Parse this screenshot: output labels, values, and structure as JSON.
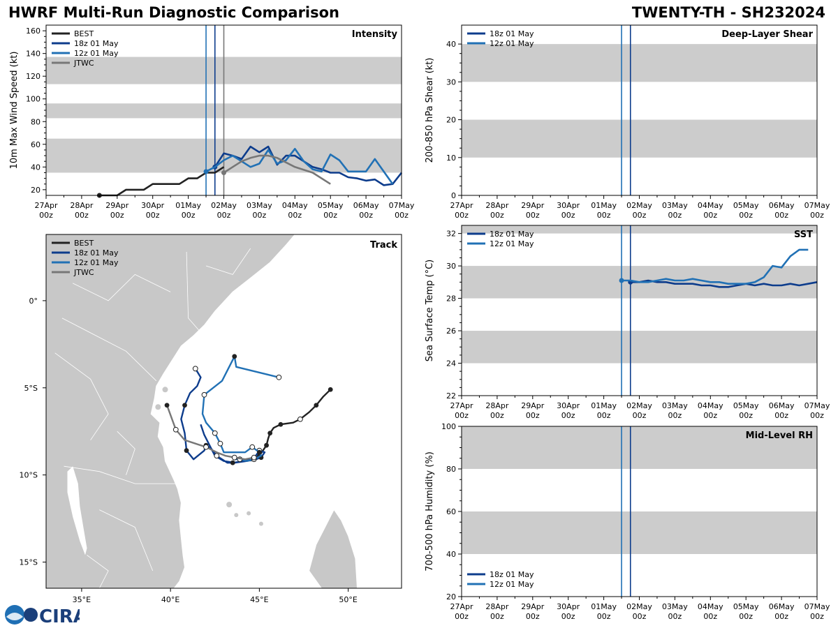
{
  "header": {
    "title": "HWRF Multi-Run Diagnostic Comparison",
    "storm": "TWENTY-TH - SH232024"
  },
  "logo": {
    "text": "CIRA"
  },
  "colors": {
    "best": "#222222",
    "run18": "#0d3c8c",
    "run12": "#2171b5",
    "jtwc": "#777777",
    "band": "#cccccc",
    "land": "#c8c8c8"
  },
  "time_axis": {
    "tick_labels": [
      [
        "27Apr",
        "00z"
      ],
      [
        "28Apr",
        "00z"
      ],
      [
        "29Apr",
        "00z"
      ],
      [
        "30Apr",
        "00z"
      ],
      [
        "01May",
        "00z"
      ],
      [
        "02May",
        "00z"
      ],
      [
        "03May",
        "00z"
      ],
      [
        "04May",
        "00z"
      ],
      [
        "05May",
        "00z"
      ],
      [
        "06May",
        "00z"
      ],
      [
        "07May",
        "00z"
      ]
    ],
    "range_days": [
      0,
      10
    ]
  },
  "chart_data": [
    {
      "type": "line",
      "name": "intensity",
      "title": "Intensity",
      "ylabel": "10m Max Wind Speed (kt)",
      "ylim": [
        15,
        165
      ],
      "yticks": [
        20,
        40,
        60,
        80,
        100,
        120,
        140,
        160
      ],
      "bands": [
        [
          35,
          65
        ],
        [
          83,
          96
        ],
        [
          113,
          137
        ]
      ],
      "vlines": [
        {
          "day": 4.5,
          "series": "run12"
        },
        {
          "day": 4.75,
          "series": "run18"
        },
        {
          "day": 5.0,
          "series": "jtwc"
        }
      ],
      "legend": [
        "BEST",
        "18z 01 May",
        "12z 01 May",
        "JTWC"
      ],
      "series": [
        {
          "name": "BEST",
          "key": "best",
          "x": [
            1.5,
            2.0,
            2.25,
            2.75,
            3.0,
            3.75,
            4.0,
            4.25,
            4.5,
            4.75,
            5.0
          ],
          "y": [
            15,
            15,
            20,
            20,
            25,
            25,
            30,
            30,
            35,
            35,
            40
          ]
        },
        {
          "name": "18z 01 May",
          "key": "run18",
          "x": [
            4.75,
            5.0,
            5.25,
            5.5,
            5.75,
            6.0,
            6.25,
            6.5,
            6.75,
            7.0,
            7.25,
            7.5,
            7.75,
            8.0,
            8.25,
            8.5,
            8.75,
            9.0,
            9.25,
            9.5,
            9.75,
            10.0
          ],
          "y": [
            40,
            52,
            50,
            47,
            58,
            53,
            58,
            42,
            50,
            50,
            45,
            40,
            38,
            35,
            35,
            31,
            30,
            28,
            29,
            24,
            25,
            35
          ]
        },
        {
          "name": "12z 01 May",
          "key": "run12",
          "x": [
            4.5,
            4.75,
            5.0,
            5.25,
            5.5,
            5.75,
            6.0,
            6.25,
            6.5,
            6.75,
            7.0,
            7.25,
            7.5,
            7.75,
            8.0,
            8.25,
            8.5,
            8.75,
            9.0,
            9.25,
            9.5,
            9.75
          ],
          "y": [
            36,
            40,
            46,
            50,
            45,
            40,
            43,
            55,
            43,
            46,
            56,
            45,
            38,
            36,
            51,
            46,
            36,
            36,
            36,
            47,
            36,
            25
          ]
        },
        {
          "name": "JTWC",
          "key": "jtwc",
          "x": [
            5.0,
            5.25,
            5.5,
            5.75,
            6.0,
            6.25,
            6.5,
            7.0,
            7.5,
            8.0
          ],
          "y": [
            35,
            40,
            45,
            48,
            50,
            50,
            48,
            40,
            35,
            25
          ]
        }
      ]
    },
    {
      "type": "line",
      "name": "shear",
      "title": "Deep-Layer Shear",
      "ylabel": "200-850 hPa Shear (kt)",
      "ylim": [
        0,
        45
      ],
      "yticks": [
        0,
        10,
        20,
        30,
        40
      ],
      "bands": [
        [
          10,
          20
        ],
        [
          30,
          40
        ]
      ],
      "vlines": [
        {
          "day": 4.5,
          "series": "run12"
        },
        {
          "day": 4.75,
          "series": "run18"
        }
      ],
      "legend": [
        "18z 01 May",
        "12z 01 May"
      ],
      "series": []
    },
    {
      "type": "line",
      "name": "sst",
      "title": "SST",
      "ylabel": "Sea Surface Temp (°C)",
      "ylim": [
        22,
        32.5
      ],
      "yticks": [
        22,
        24,
        26,
        28,
        30,
        32
      ],
      "bands": [
        [
          24,
          26
        ],
        [
          28,
          30
        ],
        [
          32,
          32.5
        ]
      ],
      "vlines": [
        {
          "day": 4.5,
          "series": "run12"
        },
        {
          "day": 4.75,
          "series": "run18"
        }
      ],
      "legend": [
        "18z 01 May",
        "12z 01 May"
      ],
      "series": [
        {
          "name": "18z 01 May",
          "key": "run18",
          "x": [
            4.75,
            5.0,
            5.25,
            5.5,
            5.75,
            6.0,
            6.25,
            6.5,
            6.75,
            7.0,
            7.25,
            7.5,
            7.75,
            8.0,
            8.25,
            8.5,
            8.75,
            9.0,
            9.25,
            9.5,
            9.75,
            10.0
          ],
          "y": [
            29.0,
            29.0,
            29.1,
            29.0,
            29.0,
            28.9,
            28.9,
            28.9,
            28.8,
            28.8,
            28.7,
            28.7,
            28.8,
            28.9,
            28.8,
            28.9,
            28.8,
            28.8,
            28.9,
            28.8,
            28.9,
            29.0
          ]
        },
        {
          "name": "12z 01 May",
          "key": "run12",
          "x": [
            4.5,
            4.75,
            5.0,
            5.25,
            5.5,
            5.75,
            6.0,
            6.25,
            6.5,
            6.75,
            7.0,
            7.25,
            7.5,
            7.75,
            8.0,
            8.25,
            8.5,
            8.75,
            9.0,
            9.25,
            9.5,
            9.75
          ],
          "y": [
            29.1,
            29.1,
            29.0,
            29.0,
            29.1,
            29.2,
            29.1,
            29.1,
            29.2,
            29.1,
            29.0,
            29.0,
            28.9,
            28.9,
            28.9,
            29.0,
            29.3,
            30.0,
            29.9,
            30.6,
            31.0,
            31.0
          ]
        }
      ]
    },
    {
      "type": "line",
      "name": "rh",
      "title": "Mid-Level RH",
      "ylabel": "700-500 hPa Humidity (%)",
      "ylim": [
        20,
        100
      ],
      "yticks": [
        20,
        40,
        60,
        80,
        100
      ],
      "bands": [
        [
          40,
          60
        ],
        [
          80,
          100
        ]
      ],
      "vlines": [
        {
          "day": 4.5,
          "series": "run12"
        },
        {
          "day": 4.75,
          "series": "run18"
        }
      ],
      "legend": [
        "18z 01 May",
        "12z 01 May"
      ],
      "series": []
    },
    {
      "type": "scatter",
      "name": "track",
      "title": "Track",
      "xlim": [
        33,
        53
      ],
      "ylim": [
        -16.5,
        3.8
      ],
      "xticks": [
        35,
        40,
        45,
        50
      ],
      "xtick_labels": [
        "35°E",
        "40°E",
        "45°E",
        "50°E"
      ],
      "yticks": [
        0,
        -5,
        -10,
        -15
      ],
      "ytick_labels": [
        "0°",
        "5°S",
        "10°S",
        "15°S"
      ],
      "legend": [
        "BEST",
        "18z 01 May",
        "12z 01 May",
        "JTWC"
      ],
      "series": [
        {
          "name": "BEST",
          "key": "best",
          "lon": [
            49.0,
            48.6,
            48.2,
            47.8,
            47.3,
            46.9,
            46.2,
            45.8,
            45.6,
            45.5,
            45.4,
            45.2,
            45.0,
            44.8,
            44.6,
            44.5
          ],
          "lat": [
            -5.1,
            -5.5,
            -6.0,
            -6.4,
            -6.8,
            -7.0,
            -7.1,
            -7.3,
            -7.6,
            -7.9,
            -8.3,
            -8.6,
            -8.9,
            -9.0,
            -9.1,
            -9.2
          ],
          "marks": [
            0,
            2,
            6,
            8,
            10,
            12
          ],
          "open_marks": [
            4
          ]
        },
        {
          "name": "18z 01 May",
          "key": "run18",
          "lon": [
            41.4,
            41.7,
            41.5,
            41.1,
            40.8,
            40.6,
            40.8,
            40.9,
            41.3,
            41.9,
            42.0,
            42.3,
            42.6,
            42.9,
            43.2,
            43.5,
            44.2,
            44.8,
            45.0,
            45.3,
            45.1,
            44.8,
            44.3,
            43.6,
            43.0,
            42.5,
            42.2,
            41.9,
            41.7
          ],
          "lat": [
            -3.9,
            -4.4,
            -4.9,
            -5.3,
            -6.0,
            -6.8,
            -7.6,
            -8.6,
            -9.1,
            -8.6,
            -8.3,
            -8.5,
            -8.9,
            -9.1,
            -9.3,
            -9.3,
            -9.2,
            -8.9,
            -8.6,
            -8.7,
            -9.0,
            -9.1,
            -9.2,
            -9.3,
            -9.2,
            -8.9,
            -8.3,
            -7.7,
            -7.1
          ],
          "marks": [
            4,
            7,
            10,
            15,
            20
          ],
          "open_marks": [
            0,
            12,
            18
          ]
        },
        {
          "name": "12z 01 May",
          "key": "run12",
          "lon": [
            46.1,
            43.7,
            43.6,
            42.9,
            41.9,
            41.8,
            42.0,
            42.5,
            42.8,
            43.0,
            43.5,
            44.2,
            44.6,
            45.0,
            45.1,
            44.7,
            44.3,
            43.9,
            43.6
          ],
          "lat": [
            -4.4,
            -3.8,
            -3.2,
            -4.6,
            -5.4,
            -6.5,
            -7.0,
            -7.6,
            -8.2,
            -8.7,
            -8.7,
            -8.7,
            -8.4,
            -8.7,
            -8.9,
            -9.1,
            -9.2,
            -9.1,
            -9.1
          ],
          "marks": [
            2,
            13
          ],
          "open_marks": [
            0,
            4,
            7,
            8,
            12,
            15,
            17
          ]
        },
        {
          "name": "JTWC",
          "key": "jtwc",
          "lon": [
            39.8,
            40.3,
            40.8,
            41.4,
            42.0,
            42.6,
            43.1,
            43.6,
            44.2,
            44.7
          ],
          "lat": [
            -6.0,
            -7.4,
            -8.0,
            -8.2,
            -8.4,
            -8.7,
            -8.9,
            -9.0,
            -9.1,
            -9.0
          ],
          "marks": [
            0,
            4
          ],
          "open_marks": [
            1,
            4,
            7,
            9
          ]
        }
      ]
    }
  ]
}
